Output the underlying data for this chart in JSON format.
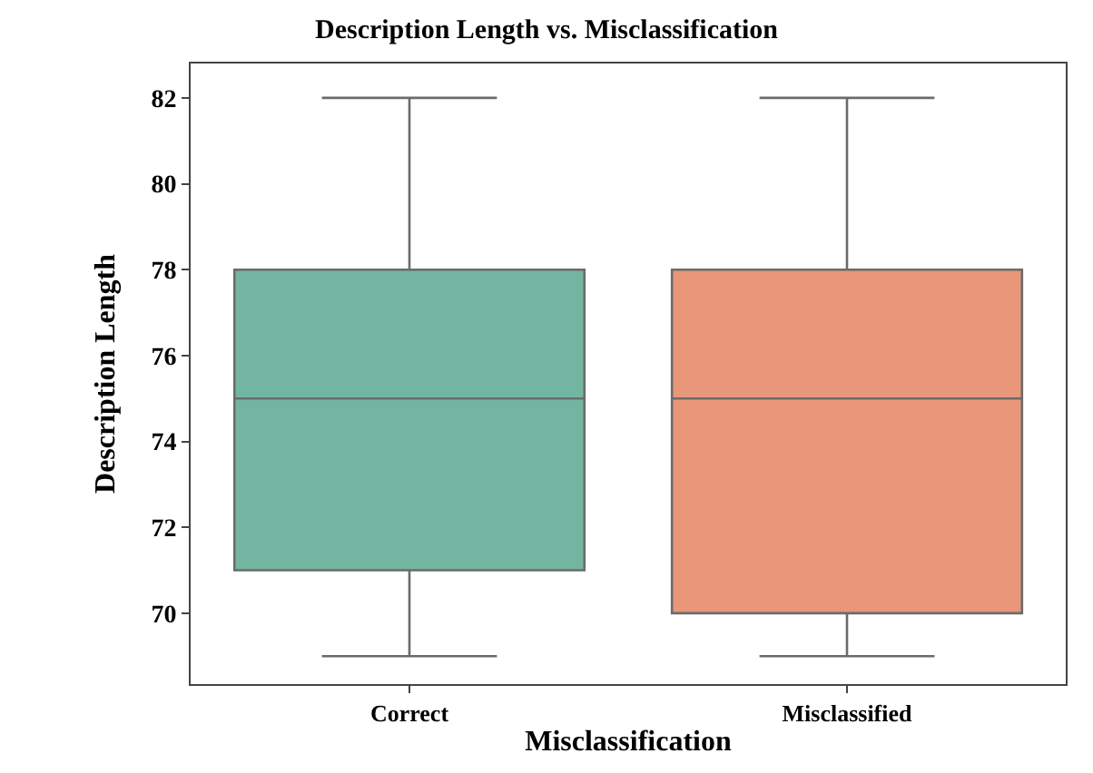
{
  "chart_data": {
    "type": "box",
    "title": "Description Length vs. Misclassification",
    "xlabel": "Misclassification",
    "ylabel": "Description Length",
    "categories": [
      "Correct",
      "Misclassified"
    ],
    "colors": [
      "#72b6a1",
      "#e9977a"
    ],
    "boxes": [
      {
        "low": 69,
        "q1": 71,
        "median": 75,
        "q3": 78,
        "high": 82
      },
      {
        "low": 69,
        "q1": 70,
        "median": 75,
        "q3": 78,
        "high": 82
      }
    ],
    "ylim": [
      68.35,
      82.8
    ],
    "yticks": [
      70,
      72,
      74,
      76,
      78,
      80,
      82
    ]
  }
}
